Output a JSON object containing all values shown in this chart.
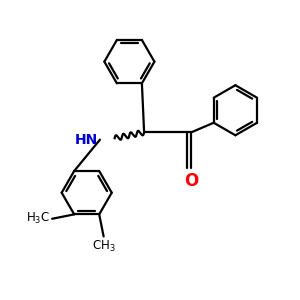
{
  "background_color": "#ffffff",
  "bond_color": "#000000",
  "N_color": "#0000cc",
  "O_color": "#ff0000",
  "figsize": [
    3.0,
    3.0
  ],
  "dpi": 100,
  "lw": 1.6,
  "r_hex": 0.85
}
